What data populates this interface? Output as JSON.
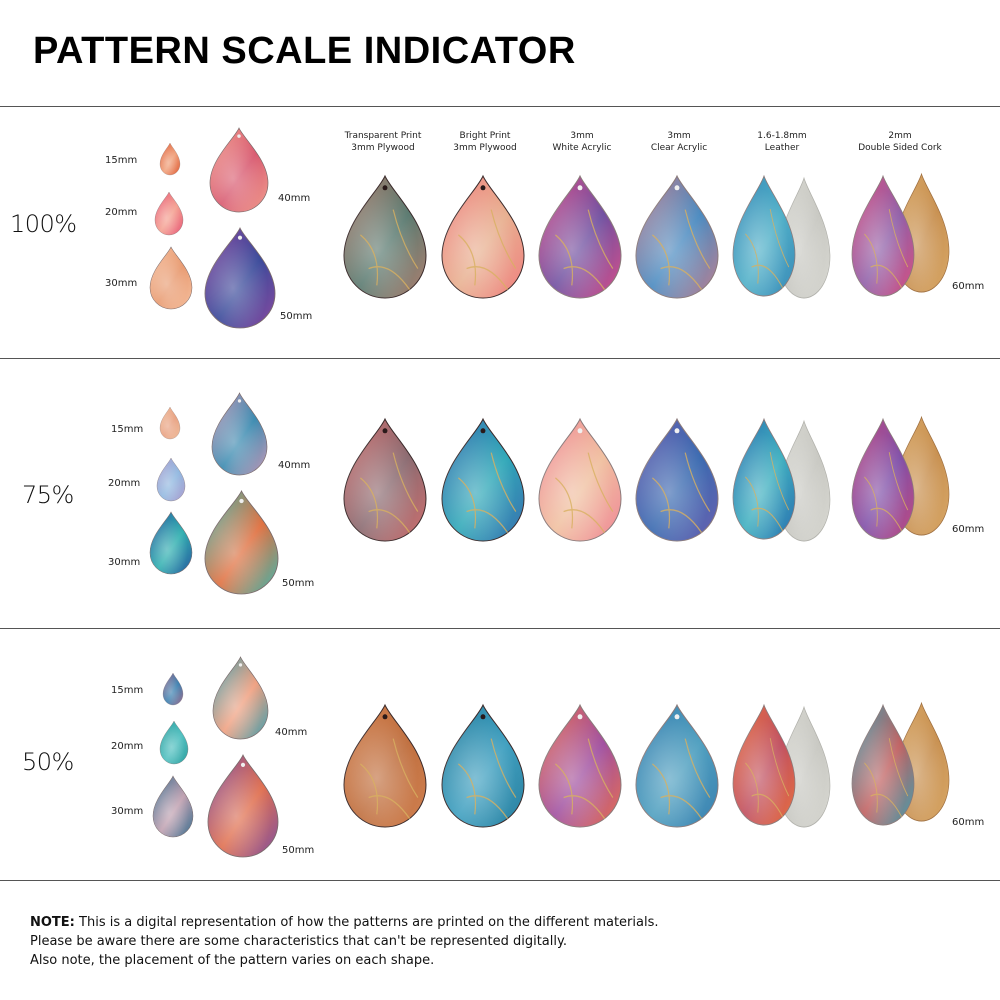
{
  "title": "PATTERN SCALE INDICATOR",
  "materials": [
    {
      "line1": "Transparent Print",
      "line2": "3mm Plywood"
    },
    {
      "line1": "Bright Print",
      "line2": "3mm Plywood"
    },
    {
      "line1": "3mm",
      "line2": "White Acrylic"
    },
    {
      "line1": "3mm",
      "line2": "Clear Acrylic"
    },
    {
      "line1": "1.6-1.8mm",
      "line2": "Leather"
    },
    {
      "line1": "2mm",
      "line2": "Double Sided Cork"
    }
  ],
  "sections": [
    {
      "scale": "100%",
      "sizes": [
        "15mm",
        "20mm",
        "30mm",
        "40mm",
        "50mm"
      ],
      "sample_size": "60mm",
      "palette": {
        "s15": [
          "#e0603a",
          "#f0a07a"
        ],
        "s20": [
          "#e85a7a",
          "#f4a090"
        ],
        "s30": [
          "#f5c0a0",
          "#e89a70"
        ],
        "s40": [
          "#f2a090",
          "#d85a70"
        ],
        "s50": [
          "#8a4aa0",
          "#3a4a9a"
        ],
        "m": [
          [
            "#b08070",
            "#5a7a70"
          ],
          [
            "#f08080",
            "#e8b090"
          ],
          [
            "#d8508a",
            "#7050a0"
          ],
          [
            "#c08090",
            "#4a8ac0"
          ],
          [
            "#3a8ab8",
            "#50b0c8"
          ],
          [
            "#d85080",
            "#9060a8"
          ]
        ]
      }
    },
    {
      "scale": "75%",
      "sizes": [
        "15mm",
        "20mm",
        "30mm",
        "40mm",
        "50mm"
      ],
      "sample_size": "60mm",
      "palette": {
        "s15": [
          "#f0c0a0",
          "#e8a080"
        ],
        "s20": [
          "#b0a0d0",
          "#90b8e0"
        ],
        "s30": [
          "#2a5aa0",
          "#30b0b0"
        ],
        "s40": [
          "#c89ab8",
          "#3a8ab0"
        ],
        "s50": [
          "#40b8b0",
          "#e07040"
        ],
        "m": [
          [
            "#d07070",
            "#8a6a70"
          ],
          [
            "#3a70b0",
            "#30a8b8"
          ],
          [
            "#f08898",
            "#f0c0a0"
          ],
          [
            "#6a60b0",
            "#3a6ab0"
          ],
          [
            "#2a70b0",
            "#40b0c0"
          ],
          [
            "#c04a80",
            "#8050a8"
          ]
        ]
      }
    },
    {
      "scale": "50%",
      "sizes": [
        "15mm",
        "20mm",
        "30mm",
        "40mm",
        "50mm"
      ],
      "sample_size": "60mm",
      "palette": {
        "s15": [
          "#a07090",
          "#3a80b0"
        ],
        "s20": [
          "#30a0a0",
          "#50c0c0"
        ],
        "s30": [
          "#3a7090",
          "#c0a0b0"
        ],
        "s40": [
          "#40a0b0",
          "#f0a080"
        ],
        "s50": [
          "#8050a0",
          "#e07050"
        ],
        "m": [
          [
            "#d08050",
            "#c07040"
          ],
          [
            "#2a80a0",
            "#40a0c0"
          ],
          [
            "#e87050",
            "#a050a0"
          ],
          [
            "#3a80b0",
            "#50a0c0"
          ],
          [
            "#e87040",
            "#c05060"
          ],
          [
            "#40a0b0",
            "#c06060"
          ]
        ]
      }
    }
  ],
  "note": {
    "prefix": "NOTE:",
    "line1": " This is a digital representation of how the patterns are printed on the different materials.",
    "line2": "Please be aware there are some characteristics that can't be represented digitally.",
    "line3": "Also note, the placement of the pattern varies on each shape."
  }
}
